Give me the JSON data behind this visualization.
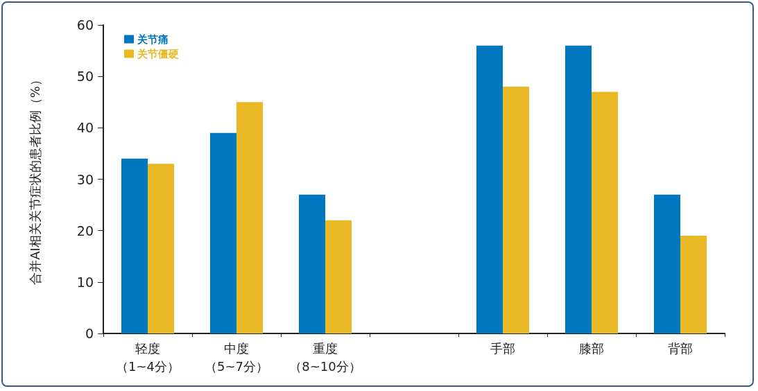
{
  "chart_data": {
    "type": "bar",
    "ylabel": "合并AI相关关节症状的患者比例（%）",
    "categories": [
      "轻度（1~4分）",
      "中度（5~7分）",
      "重度（8~10分）",
      null,
      "手部",
      "膝部",
      "背部"
    ],
    "series": [
      {
        "name": "关节痛",
        "color": "#0077c0",
        "values": [
          34,
          39,
          27,
          null,
          56,
          56,
          27
        ]
      },
      {
        "name": "关节僵硬",
        "color": "#e8b923",
        "values": [
          33,
          45,
          22,
          null,
          48,
          47,
          19
        ]
      }
    ],
    "ylim": [
      0,
      60
    ],
    "yticks": [
      0,
      10,
      20,
      30,
      40,
      50,
      60
    ],
    "grid": false,
    "legend": "top left"
  }
}
